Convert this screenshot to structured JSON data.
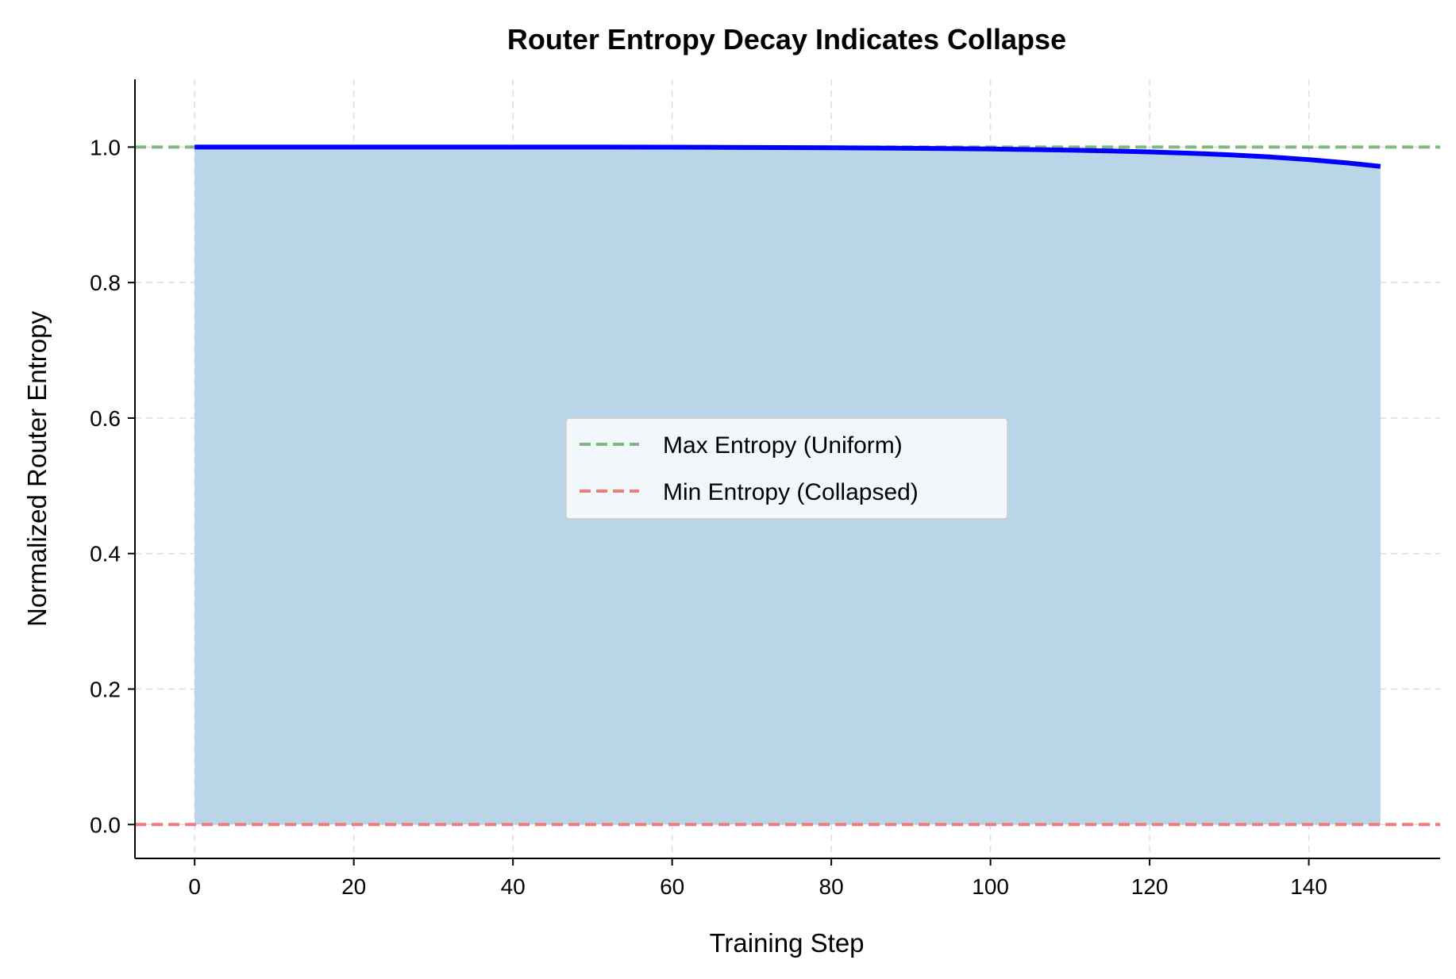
{
  "chart_data": {
    "type": "area",
    "title": "Router Entropy Decay Indicates Collapse",
    "xlabel": "Training Step",
    "ylabel": "Normalized Router Entropy",
    "xlim": [
      -7.5,
      156.5
    ],
    "ylim": [
      -0.05,
      1.1
    ],
    "xticks": [
      0,
      20,
      40,
      60,
      80,
      100,
      120,
      140
    ],
    "yticks": [
      0.0,
      0.2,
      0.4,
      0.6,
      0.8,
      1.0
    ],
    "grid": true,
    "legend_position": "center",
    "series": [
      {
        "x": [
          0,
          10,
          20,
          30,
          40,
          50,
          60,
          70,
          80,
          90,
          100,
          105,
          110,
          115,
          120,
          125,
          130,
          135,
          140,
          145,
          149
        ],
        "values": [
          1.0,
          1.0,
          1.0,
          1.0,
          1.0,
          1.0,
          0.9998,
          0.9995,
          0.999,
          0.9983,
          0.9972,
          0.9964,
          0.9955,
          0.9943,
          0.9928,
          0.991,
          0.9886,
          0.9855,
          0.9815,
          0.9765,
          0.9715
        ],
        "color": "#0000ff",
        "fill_color": "#bad4e8"
      }
    ],
    "reference_lines": [
      {
        "name": "Max Entropy (Uniform)",
        "y": 1.0,
        "color": "#7fb97f",
        "style": "dashed"
      },
      {
        "name": "Min Entropy (Collapsed)",
        "y": 0.0,
        "color": "#f07b7b",
        "style": "dashed"
      }
    ]
  }
}
